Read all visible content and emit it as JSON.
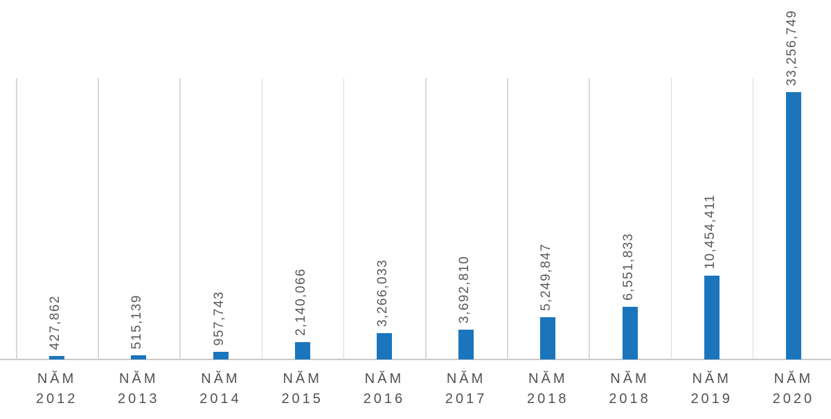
{
  "chart_data": {
    "type": "bar",
    "title": "",
    "xlabel": "",
    "ylabel": "",
    "categories": [
      [
        "NĂM",
        "2012"
      ],
      [
        "NĂM",
        "2013"
      ],
      [
        "NĂM",
        "2014"
      ],
      [
        "NĂM",
        "2015"
      ],
      [
        "NĂM",
        "2016"
      ],
      [
        "NĂM",
        "2017"
      ],
      [
        "NĂM",
        "2018"
      ],
      [
        "NĂM",
        "2018"
      ],
      [
        "NĂM",
        "2019"
      ],
      [
        "NĂM",
        "2020"
      ]
    ],
    "values": [
      427862,
      515139,
      957743,
      2140066,
      3266033,
      3692810,
      5249847,
      6551833,
      10454411,
      33256749
    ],
    "value_labels": [
      "427,862",
      "515,139",
      "957,743",
      "2,140,066",
      "3,266,033",
      "3,692,810",
      "5,249,847",
      "6,551,833",
      "10,454,411",
      "33,256,749"
    ],
    "ylim": [
      0,
      35000000
    ],
    "y_axis_visible": false,
    "grid": "vertical-category-separators",
    "legend": "none",
    "data_label_rotation": 90,
    "colors": {
      "bar": "#1b75bc",
      "gridline": "#d9d9d9",
      "axis_line": "#c9c9c9",
      "value_label": "#595959",
      "category_label": "#515151",
      "background": "#ffffff"
    }
  }
}
